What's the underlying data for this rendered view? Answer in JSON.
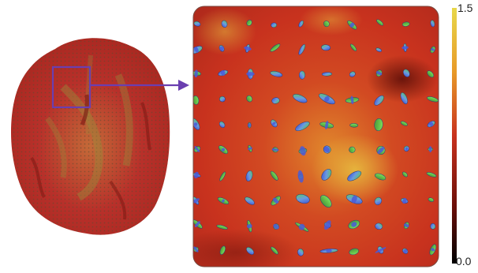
{
  "colorbar": {
    "max_label": "1.5",
    "min_label": "0.0",
    "colors": {
      "top": "#e8d84a",
      "upper": "#e89a28",
      "middle": "#c8321e",
      "lower": "#6a0e08",
      "bottom": "#000000"
    }
  },
  "highlight": {
    "color": "#6a3fb0"
  },
  "brain": {
    "tissue_color": "#b8302a",
    "white_matter_color": "#8a7a3a"
  }
}
